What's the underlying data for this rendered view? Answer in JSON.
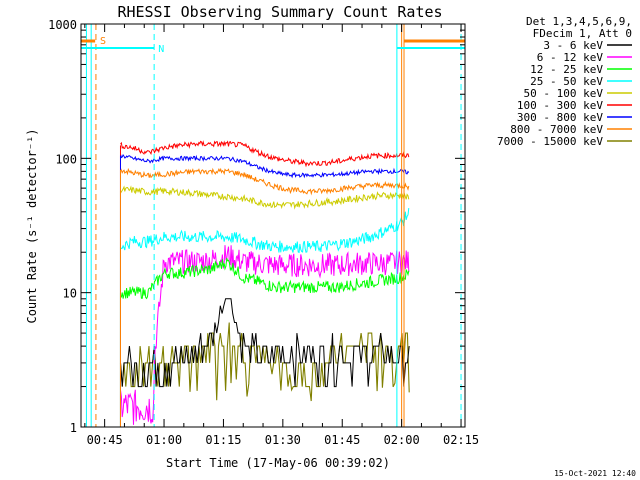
{
  "chart_data": {
    "type": "line",
    "title": "RHESSI Observing Summary Count Rates",
    "xlabel": "Start Time (17-May-06 00:39:02)",
    "ylabel": "Count Rate (s⁻¹ detector⁻¹)",
    "yscale": "log",
    "ylim": [
      1,
      1000
    ],
    "xlim_minutes": [
      39.03,
      136.0
    ],
    "x_ticks": [
      {
        "label": "00:45",
        "minutes": 45
      },
      {
        "label": "01:00",
        "minutes": 60
      },
      {
        "label": "01:15",
        "minutes": 75
      },
      {
        "label": "01:30",
        "minutes": 90
      },
      {
        "label": "01:45",
        "minutes": 105
      },
      {
        "label": "02:00",
        "minutes": 120
      },
      {
        "label": "02:15",
        "minutes": 135
      }
    ],
    "y_ticks": [
      {
        "label": "1",
        "value": 1
      },
      {
        "label": "10",
        "value": 10
      },
      {
        "label": "100",
        "value": 100
      },
      {
        "label": "1000",
        "value": 1000
      }
    ],
    "legend_header": [
      "Det 1,3,4,5,6,9,",
      "FDecim 1, Att 0"
    ],
    "x_minutes": [
      49,
      52,
      56,
      60,
      64,
      68,
      72,
      76,
      80,
      84,
      88,
      92,
      96,
      100,
      104,
      108,
      112,
      116,
      120,
      122
    ],
    "series": [
      {
        "name": "3 - 6 keV",
        "color": "#000000",
        "values": [
          3,
          3,
          3,
          3,
          3,
          3.5,
          4.5,
          10,
          4,
          3.5,
          3.5,
          3.5,
          3.5,
          3.5,
          3.5,
          3.5,
          3.5,
          3.5,
          3.5,
          3.5
        ]
      },
      {
        "name": "6 - 12 keV",
        "color": "#ff00ff",
        "values": [
          1.2,
          1.2,
          1.2,
          17,
          17,
          17,
          17.5,
          19,
          17,
          16.5,
          16,
          16,
          16,
          16,
          16,
          16.5,
          16.5,
          16.5,
          17,
          17
        ]
      },
      {
        "name": "12 - 25 keV",
        "color": "#00ff00",
        "values": [
          10,
          10,
          10,
          14,
          14,
          14.5,
          15,
          17,
          13,
          12,
          11,
          11,
          11,
          11,
          11,
          11.5,
          12,
          12.5,
          13,
          14
        ]
      },
      {
        "name": "25 - 50 keV",
        "color": "#00ffff",
        "values": [
          22,
          24,
          24,
          26,
          26,
          26,
          26,
          26,
          25,
          23,
          22,
          22,
          22,
          22,
          23,
          24,
          26,
          29,
          33,
          40
        ]
      },
      {
        "name": "50 - 100 keV",
        "color": "#cccc00",
        "values": [
          58,
          58,
          56,
          57,
          56,
          55,
          53,
          52,
          50,
          47,
          45,
          45,
          46,
          47,
          48,
          50,
          52,
          53,
          53,
          50
        ]
      },
      {
        "name": "100 - 300 keV",
        "color": "#ff0000",
        "values": [
          125,
          120,
          110,
          120,
          125,
          128,
          128,
          128,
          125,
          110,
          100,
          95,
          92,
          92,
          95,
          100,
          104,
          105,
          105,
          105
        ]
      },
      {
        "name": "300 - 800 keV",
        "color": "#0000ff",
        "values": [
          105,
          100,
          95,
          100,
          100,
          100,
          100,
          100,
          95,
          85,
          78,
          75,
          75,
          75,
          76,
          78,
          80,
          80,
          80,
          78
        ]
      },
      {
        "name": "800 - 7000 keV",
        "color": "#ff8000",
        "values": [
          82,
          78,
          74,
          76,
          78,
          80,
          80,
          80,
          76,
          68,
          62,
          58,
          57,
          57,
          59,
          61,
          63,
          63,
          63,
          61
        ]
      },
      {
        "name": "7000 - 15000 keV",
        "color": "#808000",
        "values": [
          3,
          3,
          3,
          3,
          3,
          4,
          4.5,
          5,
          4,
          3.5,
          3,
          3,
          2.5,
          3,
          3.5,
          4,
          4,
          4,
          4,
          4
        ]
      }
    ],
    "annotations": [
      {
        "text": "S",
        "color": "#ff8000"
      },
      {
        "text": "N",
        "color": "#00ffff"
      }
    ],
    "timestamp": "15-Oct-2021 12:40"
  }
}
